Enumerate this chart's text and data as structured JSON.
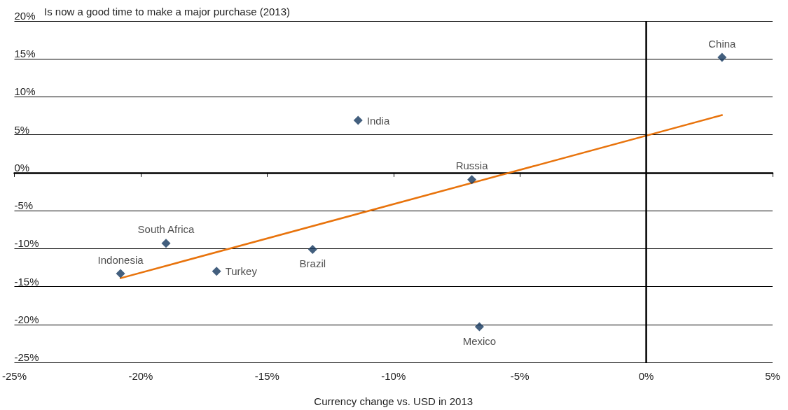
{
  "chart_data": {
    "type": "scatter",
    "ylabel": "Is now a good time to make a major purchase (2013)",
    "xlabel": "Currency change vs. USD in 2013",
    "xlim": [
      -25,
      5
    ],
    "xticks": [
      {
        "value": -25,
        "label": "-25%"
      },
      {
        "value": -20,
        "label": "-20%"
      },
      {
        "value": -15,
        "label": "-15%"
      },
      {
        "value": -10,
        "label": "-10%"
      },
      {
        "value": -5,
        "label": "-5%"
      },
      {
        "value": 0,
        "label": "0%"
      },
      {
        "value": 5,
        "label": "5%"
      }
    ],
    "ylim": [
      -25,
      20
    ],
    "yticks": [
      {
        "value": -25,
        "label": "-25%"
      },
      {
        "value": -20,
        "label": "-20%"
      },
      {
        "value": -15,
        "label": "-15%"
      },
      {
        "value": -10,
        "label": "-10%"
      },
      {
        "value": -5,
        "label": "-5%"
      },
      {
        "value": 0,
        "label": "0%"
      },
      {
        "value": 5,
        "label": "5%"
      },
      {
        "value": 10,
        "label": "10%"
      },
      {
        "value": 15,
        "label": "15%"
      },
      {
        "value": 20,
        "label": "20%"
      }
    ],
    "grid": "y",
    "legend": false,
    "marker": "diamond",
    "series": [
      {
        "name": "China",
        "color": "#14375e",
        "x": [
          3.0
        ],
        "values": [
          15.2
        ]
      },
      {
        "name": "India",
        "color": "#14375e",
        "x": [
          -11.4
        ],
        "values": [
          6.9
        ]
      },
      {
        "name": "Russia",
        "color": "#14375e",
        "x": [
          -6.9
        ],
        "values": [
          -0.9
        ]
      },
      {
        "name": "South Africa",
        "color": "#14375e",
        "x": [
          -19.0
        ],
        "values": [
          -9.3
        ]
      },
      {
        "name": "Indonesia",
        "color": "#14375e",
        "x": [
          -20.8
        ],
        "values": [
          -13.3
        ]
      },
      {
        "name": "Turkey",
        "color": "#14375e",
        "x": [
          -17.0
        ],
        "values": [
          -13.0
        ]
      },
      {
        "name": "Brazil",
        "color": "#14375e",
        "x": [
          -13.2
        ],
        "values": [
          -10.1
        ]
      },
      {
        "name": "Mexico",
        "color": "#14375e",
        "x": [
          -6.6
        ],
        "values": [
          -20.3
        ]
      },
      {
        "type": "line",
        "color": "#e8730c",
        "marker": "none",
        "x": [
          -20.8,
          3.0
        ],
        "values": [
          -13.9,
          7.6
        ]
      }
    ],
    "ref_lines": [
      {
        "axis": "x",
        "value": 0,
        "color": "#000000"
      }
    ]
  }
}
